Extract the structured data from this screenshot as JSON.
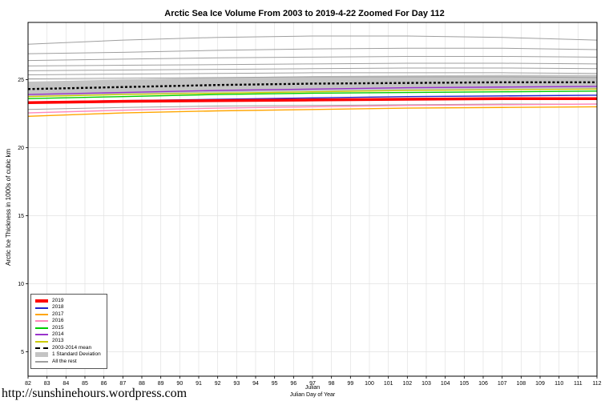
{
  "title": "Arctic Sea Ice Volume From 2003 to 2019-4-22 Zoomed For Day 112",
  "footer_url": "http://sunshinehours.wordpress.com",
  "axes": {
    "x_label_line1": "Julian",
    "x_label_line2": "Julian Day of Year",
    "y_label": "Arctic Ice Thickness in 1000s of cubic km",
    "x_ticks": [
      82,
      83,
      84,
      85,
      86,
      87,
      88,
      89,
      90,
      91,
      92,
      93,
      94,
      95,
      96,
      97,
      98,
      99,
      100,
      101,
      102,
      103,
      104,
      105,
      106,
      107,
      108,
      109,
      110,
      111,
      112
    ],
    "y_ticks": [
      5,
      10,
      15,
      20,
      25
    ]
  },
  "chart_data": {
    "type": "line",
    "title": "Arctic Sea Ice Volume From 2003 to 2019-4-22 Zoomed For Day 112",
    "xlabel": "Julian Day of Year",
    "ylabel": "Arctic Ice Thickness in 1000s of cubic km",
    "xlim": [
      82,
      112
    ],
    "ylim": [
      3.2,
      29.2
    ],
    "grid": true,
    "legend_position": "bottom-left",
    "x": [
      82,
      87,
      92,
      97,
      102,
      107,
      112
    ],
    "series": [
      {
        "name": "2019",
        "color": "#FF0000",
        "width": 3.5,
        "values": [
          23.3,
          23.4,
          23.45,
          23.5,
          23.55,
          23.6,
          23.6
        ]
      },
      {
        "name": "2018",
        "color": "#2222CC",
        "width": 1.4,
        "values": [
          23.35,
          23.45,
          23.55,
          23.65,
          23.75,
          23.8,
          23.85
        ]
      },
      {
        "name": "2017",
        "color": "#FFA500",
        "width": 1.4,
        "values": [
          22.3,
          22.55,
          22.7,
          22.8,
          22.9,
          22.95,
          23.0
        ]
      },
      {
        "name": "2016",
        "color": "#FF88BB",
        "width": 1.4,
        "values": [
          22.55,
          22.75,
          22.9,
          23.0,
          23.1,
          23.15,
          23.2
        ]
      },
      {
        "name": "2015",
        "color": "#00CC00",
        "width": 1.4,
        "values": [
          23.6,
          23.75,
          23.9,
          24.0,
          24.05,
          24.1,
          24.15
        ]
      },
      {
        "name": "2014",
        "color": "#9933CC",
        "width": 1.4,
        "values": [
          23.9,
          24.05,
          24.2,
          24.3,
          24.4,
          24.45,
          24.5
        ]
      },
      {
        "name": "2013",
        "color": "#CCCC00",
        "width": 1.4,
        "values": [
          23.75,
          23.9,
          24.0,
          24.1,
          24.2,
          24.25,
          24.3
        ]
      }
    ],
    "mean_series": {
      "name": "2003-2014 mean",
      "color": "#000000",
      "dashed": true,
      "width": 2.4,
      "values": [
        24.3,
        24.45,
        24.6,
        24.7,
        24.75,
        24.8,
        24.8
      ]
    },
    "std_band": {
      "name": "1 Standard Deviation",
      "color": "#C4C4C4",
      "half_width": 0.55
    },
    "rest_series": {
      "name": "All the rest",
      "color": "#9E9E9E",
      "width": 1,
      "lines": [
        [
          27.6,
          27.9,
          28.1,
          28.2,
          28.2,
          28.1,
          27.9
        ],
        [
          26.9,
          27.0,
          27.15,
          27.25,
          27.3,
          27.3,
          27.2
        ],
        [
          26.4,
          26.5,
          26.6,
          26.65,
          26.7,
          26.7,
          26.65
        ],
        [
          26.0,
          26.05,
          26.1,
          26.15,
          26.2,
          26.2,
          26.15
        ],
        [
          25.65,
          25.7,
          25.75,
          25.8,
          25.85,
          25.85,
          25.8
        ],
        [
          25.35,
          25.4,
          25.45,
          25.5,
          25.5,
          25.5,
          25.45
        ],
        [
          25.05,
          25.1,
          25.15,
          25.2,
          25.2,
          25.2,
          25.15
        ],
        [
          22.8,
          22.95,
          23.05,
          23.1,
          23.15,
          23.2,
          23.2
        ]
      ]
    },
    "legend": {
      "items": [
        {
          "label": "2019",
          "style": "thick",
          "color": "#FF0000"
        },
        {
          "label": "2018",
          "style": "line",
          "color": "#2222CC"
        },
        {
          "label": "2017",
          "style": "line",
          "color": "#FFA500"
        },
        {
          "label": "2016",
          "style": "line",
          "color": "#FF88BB"
        },
        {
          "label": "2015",
          "style": "line",
          "color": "#00CC00"
        },
        {
          "label": "2014",
          "style": "line",
          "color": "#9933CC"
        },
        {
          "label": "2013",
          "style": "line",
          "color": "#CCCC00"
        },
        {
          "label": "2003-2014 mean",
          "style": "dashed",
          "color": "#000000"
        },
        {
          "label": "1 Standard Deviation",
          "style": "band",
          "color": "#C4C4C4"
        },
        {
          "label": "All the rest",
          "style": "line",
          "color": "#9E9E9E"
        }
      ]
    }
  }
}
